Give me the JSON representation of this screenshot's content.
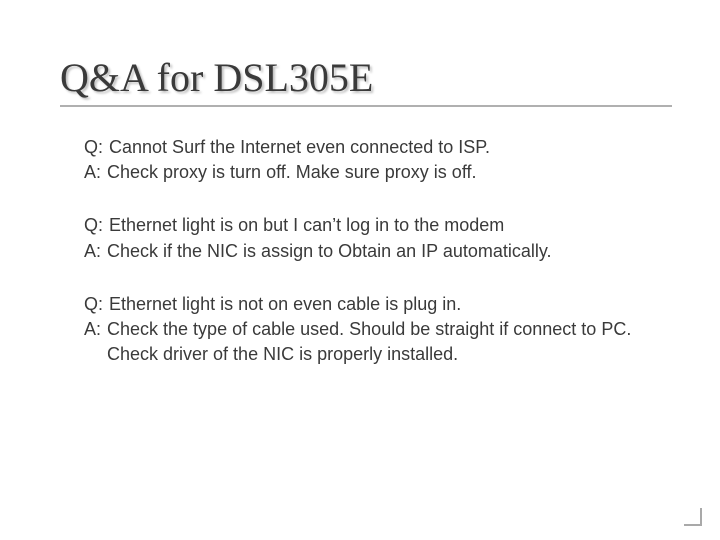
{
  "title": "Q&A for DSL305E",
  "qa": [
    {
      "q": "Cannot Surf the Internet even connected to ISP.",
      "a": "Check proxy is turn off.  Make sure proxy is off."
    },
    {
      "q": "Ethernet light is on but I can’t log in to the modem",
      "a": "Check if the NIC is assign to Obtain an IP automatically."
    },
    {
      "q": "Ethernet light is not on even cable is plug in.",
      "a": "Check the type of cable used. Should be straight if connect to PC. Check driver of the NIC is properly installed."
    }
  ],
  "style": {
    "background_color": "#ffffff",
    "title_color": "#3a3a3a",
    "title_fontsize": 40,
    "title_font": "Times New Roman",
    "body_color": "#3a3a3a",
    "body_fontsize": 18,
    "body_font": "Verdana",
    "underline_color": "#b0b0b0",
    "corner_color": "#a9a9a9"
  }
}
